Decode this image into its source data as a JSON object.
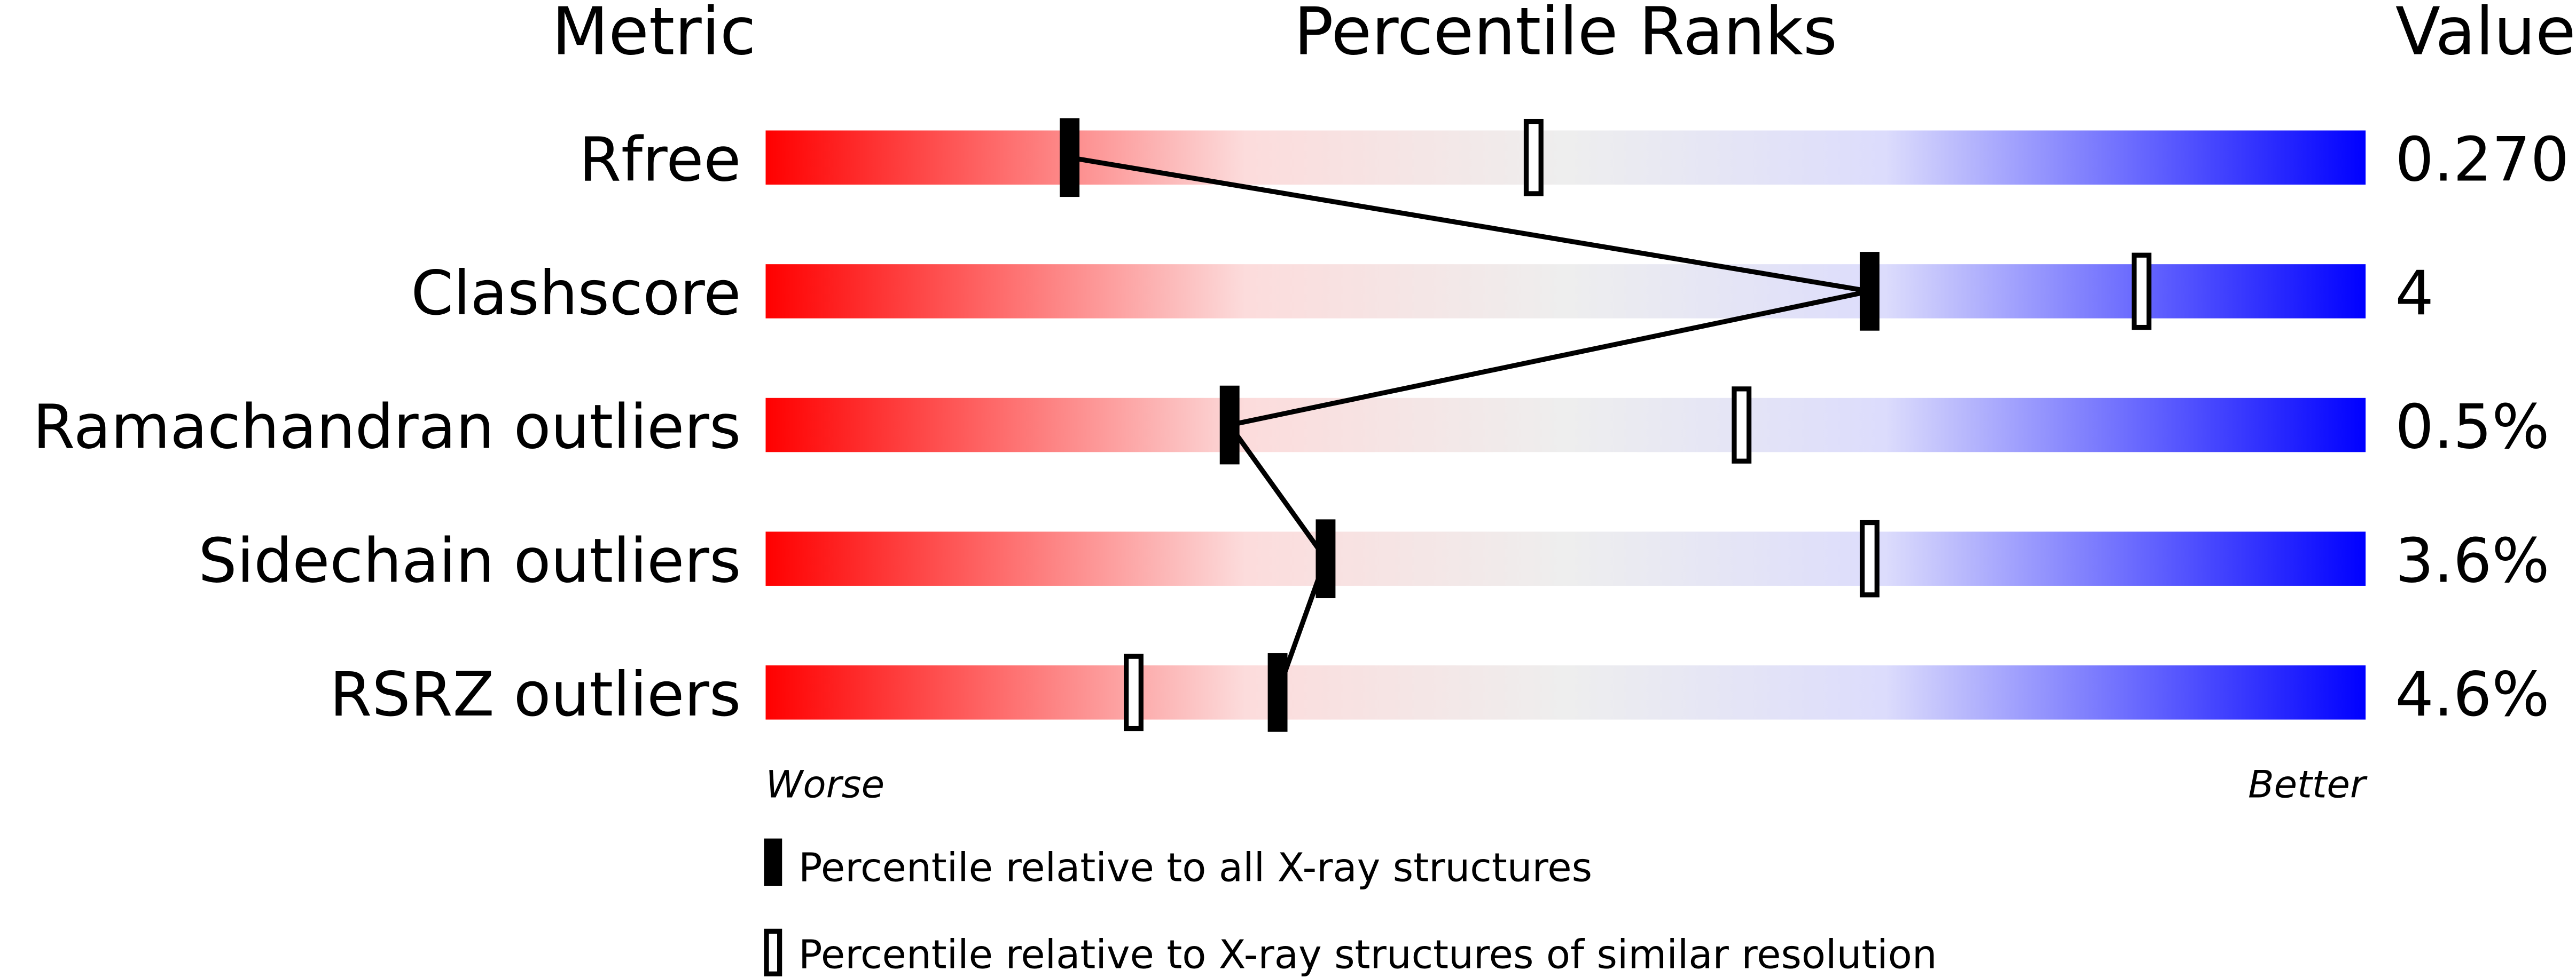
{
  "chart_data": {
    "type": "percentile-bar",
    "headers": {
      "metric": "Metric",
      "percentile": "Percentile Ranks",
      "value": "Value"
    },
    "xlim": [
      0,
      100
    ],
    "metrics": [
      {
        "name": "Rfree",
        "value": "0.270",
        "percentile_all": 19,
        "percentile_similar": 48
      },
      {
        "name": "Clashscore",
        "value": "4",
        "percentile_all": 69,
        "percentile_similar": 86
      },
      {
        "name": "Ramachandran outliers",
        "value": "0.5%",
        "percentile_all": 29,
        "percentile_similar": 61
      },
      {
        "name": "Sidechain outliers",
        "value": "3.6%",
        "percentile_all": 35,
        "percentile_similar": 69
      },
      {
        "name": "RSRZ outliers",
        "value": "4.6%",
        "percentile_all": 32,
        "percentile_similar": 23
      }
    ],
    "scale_labels": {
      "worse": "Worse",
      "better": "Better"
    },
    "legend": {
      "filled": "Percentile relative to all X-ray structures",
      "open": "Percentile relative to X-ray structures of similar resolution"
    },
    "colors": {
      "worse": "#ff0000",
      "middle": "#eeeeee",
      "better": "#0000ff",
      "marker": "#000000"
    }
  }
}
